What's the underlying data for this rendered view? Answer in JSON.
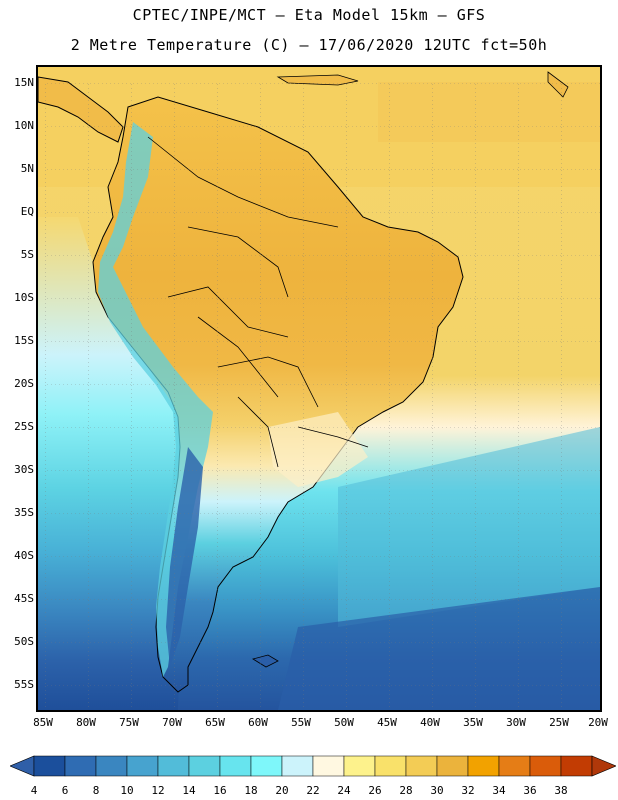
{
  "header": {
    "line1": "CPTEC/INPE/MCT –  Eta Model 15km – GFS",
    "line2": "2 Metre Temperature (C) – 17/06/2020 12UTC fct=50h"
  },
  "lat_labels": [
    "15N",
    "10N",
    "5N",
    "EQ",
    "5S",
    "10S",
    "15S",
    "20S",
    "25S",
    "30S",
    "35S",
    "40S",
    "45S",
    "50S",
    "55S"
  ],
  "lon_labels": [
    "85W",
    "80W",
    "75W",
    "70W",
    "65W",
    "60W",
    "55W",
    "50W",
    "45W",
    "40W",
    "35W",
    "30W",
    "25W",
    "20W"
  ],
  "colorbar": {
    "labels": [
      "4",
      "6",
      "8",
      "10",
      "12",
      "14",
      "16",
      "18",
      "20",
      "22",
      "24",
      "26",
      "28",
      "30",
      "32",
      "34",
      "36",
      "38"
    ],
    "colors": [
      "#1b4f9c",
      "#2f6cb3",
      "#3a86c0",
      "#47a3cf",
      "#52bcd9",
      "#5cd0e0",
      "#67e4ee",
      "#7ef7fa",
      "#ccf3fb",
      "#fff8e1",
      "#fdf28c",
      "#f9e16a",
      "#f3cc55",
      "#ebb33c",
      "#f2a200",
      "#e57d16",
      "#da5c0a",
      "#c23c03"
    ],
    "under_color": "#2f5fa8",
    "over_color": "#b0380a"
  }
}
